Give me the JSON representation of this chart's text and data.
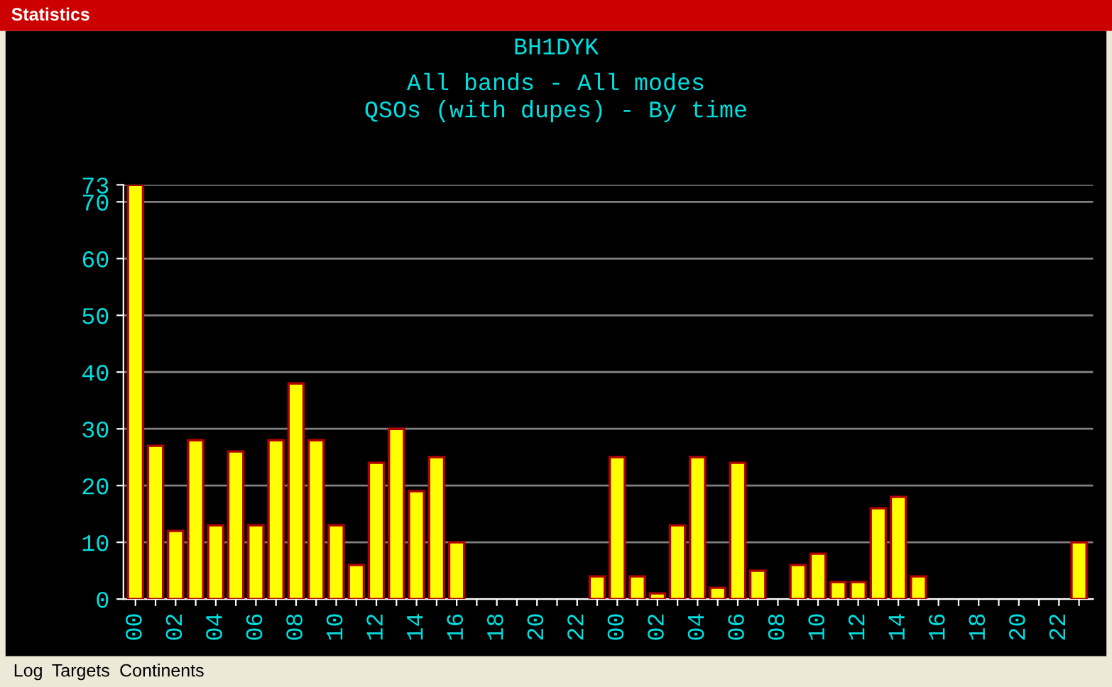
{
  "chart_data": {
    "type": "bar",
    "title": "BH1DYK",
    "subtitle": "All bands - All modes\nQSOs (with dupes) - By time",
    "annotations": [
      "Statistics",
      "Log",
      "Targets",
      "Continents"
    ],
    "categories": [
      "00",
      null,
      "02",
      null,
      "04",
      null,
      "06",
      null,
      "08",
      null,
      "10",
      null,
      "12",
      null,
      "14",
      null,
      "16",
      null,
      "18",
      null,
      "20",
      null,
      "22",
      null,
      "00",
      null,
      "02",
      null,
      "04",
      null,
      "06",
      null,
      "08",
      null,
      "10",
      null,
      "12",
      null,
      "14",
      null,
      "16",
      null,
      "18",
      null,
      "20",
      null,
      "22",
      null
    ],
    "values": [
      73,
      27,
      12,
      28,
      13,
      26,
      13,
      28,
      38,
      28,
      13,
      6,
      24,
      30,
      19,
      25,
      10,
      0,
      0,
      0,
      0,
      0,
      0,
      4,
      25,
      4,
      1,
      13,
      25,
      2,
      24,
      5,
      0,
      6,
      8,
      3,
      3,
      16,
      18,
      4,
      0,
      0,
      0,
      0,
      0,
      0,
      0,
      10
    ],
    "color": "#ffff00",
    "ylim": [
      0,
      73
    ],
    "yticks": [
      0,
      10,
      20,
      30,
      40,
      50,
      60,
      70,
      73
    ],
    "grid": "y"
  }
}
